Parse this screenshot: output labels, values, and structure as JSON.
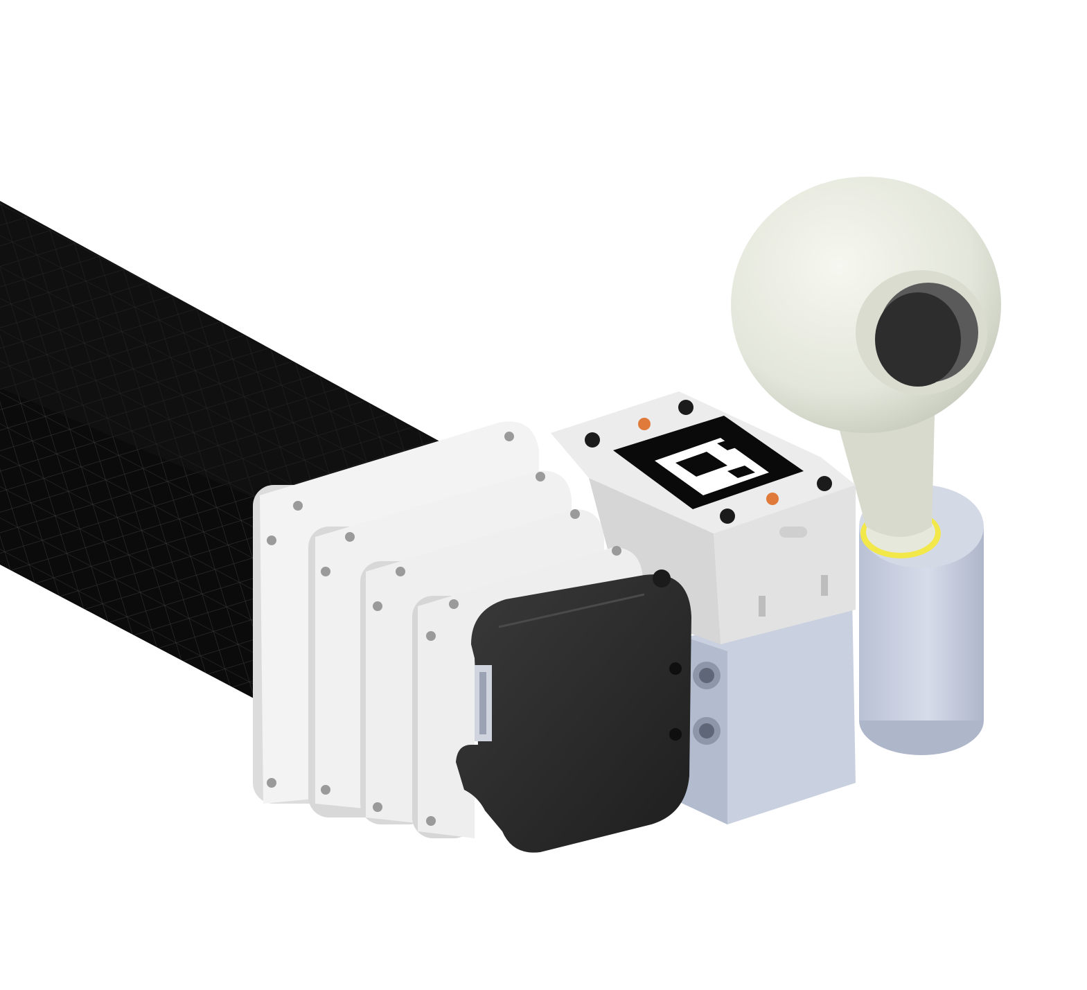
{
  "scene": {
    "description_label": "",
    "colors": {
      "background": "#ffffff",
      "tube": "#0b0b0b",
      "tube_mesh": "#3a3a3a",
      "plate": "#f3f3f3",
      "plate_shadow": "#dcdcdc",
      "cap": "#2a2a2a",
      "cap_edge": "#1a1a1a",
      "block_top": "#ececec",
      "block_side": "#dedede",
      "bracket": "#c9d0e0",
      "bracket_dark": "#b3bbcf",
      "rod_end": "#e7e9df",
      "rod_end_shade": "#cfd3c6",
      "bushing": "#c8cfe0",
      "bearing_ring": "#f2e84a",
      "fastener": "#1b1b1b",
      "insert": "#e07a3a"
    }
  }
}
